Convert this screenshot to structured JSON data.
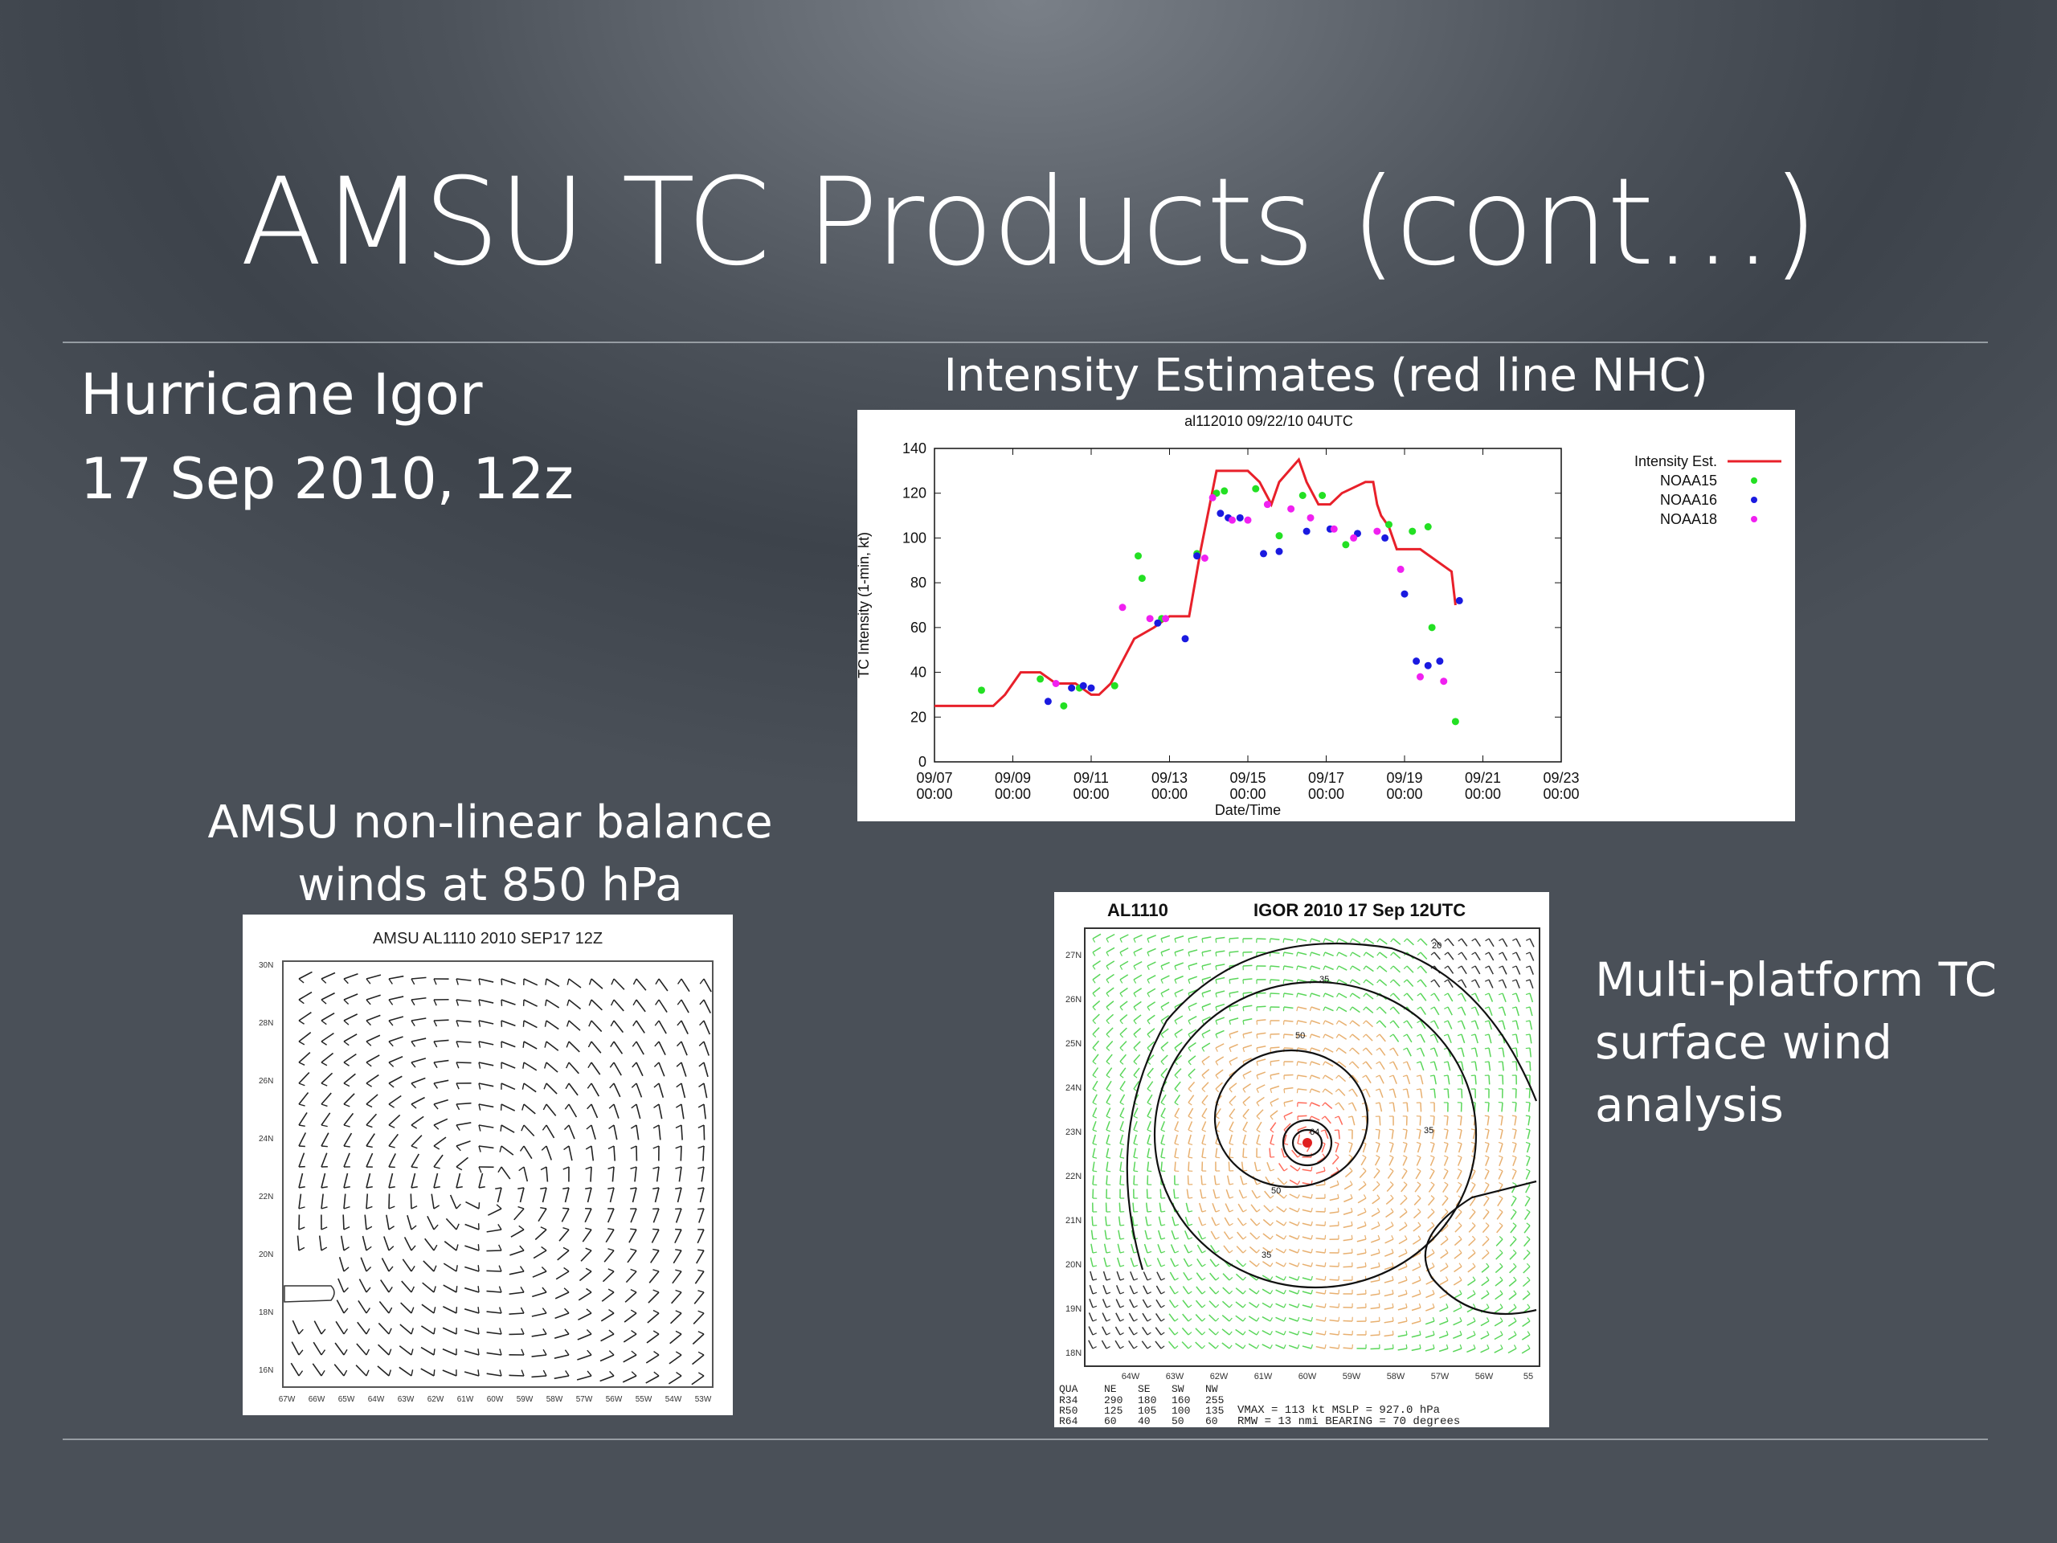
{
  "slide": {
    "title": "AMSU TC Products (cont…)",
    "storm_name": "Hurricane Igor",
    "storm_date": "17 Sep 2010, 12z",
    "intensity_caption": "Intensity Estimates (red line NHC)",
    "balance_caption_line1": "AMSU non-linear balance",
    "balance_caption_line2": "winds at 850 hPa",
    "multiplatform_caption_lines": [
      "Multi-platform TC",
      "surface wind",
      "analysis"
    ]
  },
  "chart_data": {
    "type": "line",
    "title": "al112010 09/22/10 04UTC",
    "xlabel": "Date/Time",
    "ylabel": "TC Intensity (1-min, kt)",
    "ylim": [
      0,
      140
    ],
    "yticks": [
      "0",
      "20",
      "40",
      "60",
      "80",
      "100",
      "120",
      "140"
    ],
    "xticks": [
      "09/07\n00:00",
      "09/09\n00:00",
      "09/11\n00:00",
      "09/13\n00:00",
      "09/15\n00:00",
      "09/17\n00:00",
      "09/19\n00:00",
      "09/21\n00:00",
      "09/23\n00:00"
    ],
    "legend_position": "top-right (outside plot)",
    "series": [
      {
        "name": "Intensity Est.",
        "color": "#e8202a",
        "style": "line",
        "x": [
          0,
          1,
          1.5,
          1.8,
          2.2,
          2.7,
          3.1,
          3.4,
          3.6,
          4.0,
          4.2,
          4.5,
          4.8,
          5.1,
          5.6,
          6.0,
          6.5,
          6.8,
          7.2,
          7.8,
          8.0,
          8.3,
          8.6,
          8.8,
          9.3,
          9.5,
          9.8,
          10.1,
          10.4,
          11.0,
          11.2,
          11.3,
          11.4,
          11.6,
          11.8,
          12.4,
          13.2,
          13.3
        ],
        "y": [
          25,
          25,
          25,
          30,
          40,
          40,
          35,
          35,
          35,
          30,
          30,
          35,
          45,
          55,
          60,
          65,
          65,
          95,
          130,
          130,
          130,
          125,
          115,
          125,
          135,
          125,
          115,
          115,
          120,
          125,
          125,
          115,
          110,
          105,
          95,
          95,
          85,
          70
        ]
      },
      {
        "name": "NOAA15",
        "color": "#23e023",
        "style": "points",
        "x": [
          1.2,
          2.7,
          3.3,
          3.7,
          4.6,
          5.2,
          5.3,
          5.8,
          6.7,
          7.2,
          7.4,
          8.2,
          8.8,
          9.4,
          9.9,
          10.5,
          11.6,
          12.2,
          12.6,
          12.7,
          13.3
        ],
        "y": [
          32,
          37,
          25,
          33,
          34,
          92,
          82,
          64,
          93,
          120,
          121,
          122,
          101,
          119,
          119,
          97,
          106,
          103,
          105,
          60,
          18
        ]
      },
      {
        "name": "NOAA16",
        "color": "#1a1ae0",
        "style": "points",
        "x": [
          2.9,
          3.5,
          3.8,
          4.0,
          5.7,
          6.4,
          6.7,
          7.3,
          7.5,
          7.8,
          8.4,
          8.8,
          9.5,
          10.1,
          10.8,
          11.5,
          12.0,
          12.3,
          12.6,
          12.9,
          13.4
        ],
        "y": [
          27,
          33,
          34,
          33,
          62,
          55,
          92,
          111,
          109,
          109,
          93,
          94,
          103,
          104,
          102,
          100,
          75,
          45,
          43,
          45,
          72
        ]
      },
      {
        "name": "NOAA18",
        "color": "#f020f0",
        "style": "points",
        "x": [
          3.1,
          4.8,
          5.5,
          5.9,
          6.9,
          7.1,
          7.6,
          8.0,
          8.5,
          9.1,
          9.6,
          10.2,
          10.7,
          11.3,
          11.9,
          12.4,
          13.0
        ],
        "y": [
          35,
          69,
          64,
          64,
          91,
          118,
          108,
          108,
          115,
          113,
          109,
          104,
          100,
          103,
          86,
          38,
          36
        ]
      }
    ]
  },
  "wind_panel": {
    "title": "AMSU AL1110 2010 SEP17 12Z",
    "lat_labels": [
      "30N",
      "28N",
      "26N",
      "24N",
      "22N",
      "20N",
      "18N",
      "16N"
    ],
    "lon_labels": [
      "67W",
      "66W",
      "65W",
      "64W",
      "63W",
      "62W",
      "61W",
      "60W",
      "59W",
      "58W",
      "57W",
      "56W",
      "55W",
      "54W",
      "53W"
    ]
  },
  "surface_panel": {
    "title_left": "AL1110",
    "title_right": "IGOR 2010 17 Sep 12UTC",
    "lat_labels": [
      "27N",
      "26N",
      "25N",
      "24N",
      "23N",
      "22N",
      "21N",
      "20N",
      "19N",
      "18N"
    ],
    "lon_labels": [
      "64W",
      "63W",
      "62W",
      "61W",
      "60W",
      "59W",
      "58W",
      "57W",
      "56W",
      "55"
    ],
    "contour_labels": [
      "20",
      "35",
      "50",
      "64",
      "35",
      "35",
      "50"
    ],
    "table": {
      "header": [
        "QUA",
        "NE",
        "SE",
        "SW",
        "NW"
      ],
      "rows": [
        [
          "R34",
          "290",
          "180",
          "160",
          "255"
        ],
        [
          "R50",
          "125",
          "105",
          "100",
          "135"
        ],
        [
          "R64",
          "60",
          "40",
          "50",
          "60"
        ]
      ],
      "stats_line1": "VMAX =  113 kt MSLP =  927.0 hPa",
      "stats_line2": "RMW  =  13 nmi BEARING =  70 degrees"
    }
  }
}
